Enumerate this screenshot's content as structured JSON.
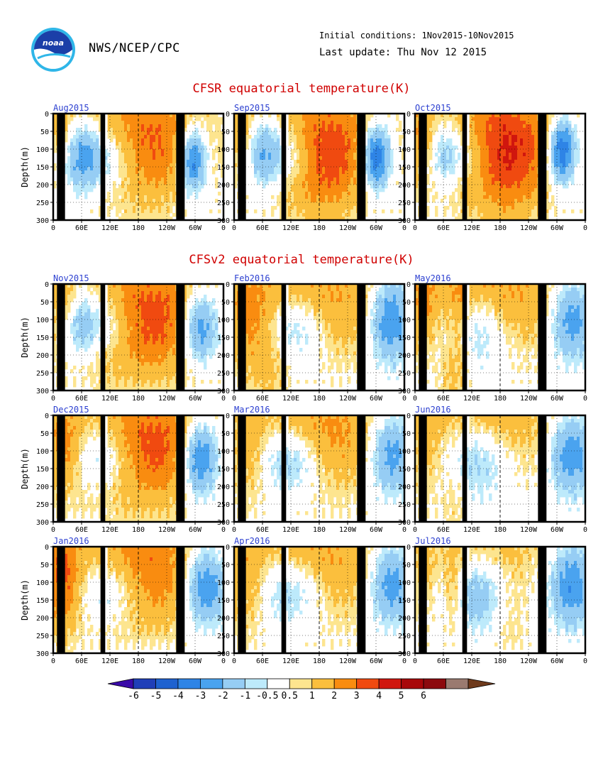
{
  "header": {
    "org": "NWS/NCEP/CPC",
    "logo_text": "noaa",
    "initial_conditions": "Initial conditions: 1Nov2015-10Nov2015",
    "last_update": "Last update: Thu Nov 12 2015"
  },
  "sections": {
    "cfsr_title": "CFSR equatorial temperature(K)",
    "cfsv2_title": "CFSv2 equatorial temperature(K)"
  },
  "colors": {
    "title_red": "#d00000",
    "panel_title_blue": "#2b3fd0",
    "land": "#000000",
    "scale": [
      "#3a0aa8",
      "#1f3fb8",
      "#1e62d0",
      "#2e84e6",
      "#4aa3ef",
      "#96cdf4",
      "#bdeafb",
      "#ffffff",
      "#fde58f",
      "#fbbf3d",
      "#f98c10",
      "#f04a10",
      "#d0160e",
      "#a8080a",
      "#8c0a0e",
      "#9a7a70",
      "#6e3a1c"
    ]
  },
  "chart_data": {
    "type": "heatmap",
    "variable": "equatorial temperature anomaly (K)",
    "ylabel": "Depth(m)",
    "y_ticks": [
      "0",
      "50",
      "100",
      "150",
      "200",
      "250",
      "300"
    ],
    "x_ticks": [
      "0",
      "60E",
      "120E",
      "180",
      "120W",
      "60W",
      "0"
    ],
    "ylim": [
      0,
      300
    ],
    "xlim": [
      0,
      360
    ],
    "colorbar_labels": [
      "-6",
      "-5",
      "-4",
      "-3",
      "-2",
      "-1",
      "-0.5",
      "0.5",
      "1",
      "2",
      "3",
      "4",
      "5",
      "6"
    ],
    "panels": [
      {
        "title": "Aug2015",
        "group": "CFSR",
        "warm": [
          180,
          85,
          140,
          300,
          3.5
        ],
        "cold": [
          [
            110,
            120,
            70,
            220,
            -3.0
          ],
          [
            295,
            130,
            30,
            200,
            -4.5
          ],
          [
            55,
            120,
            40,
            220,
            -2.5
          ]
        ],
        "warm2": [
          [
            20,
            60,
            30,
            220,
            1.2
          ]
        ]
      },
      {
        "title": "Sep2015",
        "group": "CFSR",
        "warm": [
          175,
          90,
          135,
          300,
          3.5
        ],
        "cold": [
          [
            110,
            110,
            70,
            220,
            -3.0
          ],
          [
            300,
            120,
            30,
            200,
            -5.0
          ],
          [
            60,
            110,
            35,
            220,
            -2.0
          ]
        ],
        "warm2": [
          [
            15,
            50,
            30,
            220,
            1.3
          ],
          [
            190,
            170,
            70,
            280,
            1.0
          ]
        ]
      },
      {
        "title": "Oct2015",
        "group": "CFSR",
        "warm": [
          165,
          85,
          140,
          300,
          4.0
        ],
        "cold": [
          [
            110,
            110,
            60,
            220,
            -2.8
          ],
          [
            310,
            105,
            30,
            200,
            -5.0
          ],
          [
            60,
            110,
            35,
            220,
            -2.0
          ]
        ],
        "warm2": [
          [
            10,
            60,
            30,
            220,
            1.3
          ],
          [
            195,
            180,
            70,
            290,
            1.0
          ]
        ]
      },
      {
        "title": "Nov2015",
        "group": "CFSv2",
        "warm": [
          180,
          95,
          145,
          300,
          4.0
        ],
        "cold": [
          [
            110,
            110,
            70,
            220,
            -3.0
          ],
          [
            310,
            120,
            40,
            220,
            -4.0
          ],
          [
            50,
            110,
            40,
            220,
            -2.0
          ]
        ],
        "warm2": [
          [
            20,
            70,
            30,
            220,
            1.5
          ]
        ]
      },
      {
        "title": "Feb2016",
        "group": "CFSv2",
        "warm": [
          145,
          55,
          170,
          300,
          2.8
        ],
        "cold": [
          [
            125,
            115,
            75,
            240,
            -3.0
          ],
          [
            330,
            100,
            45,
            260,
            -3.5
          ]
        ],
        "warm2": [
          [
            30,
            110,
            45,
            260,
            1.2
          ],
          [
            75,
            230,
            40,
            260,
            1.0
          ]
        ]
      },
      {
        "title": "May2016",
        "group": "CFSv2",
        "warm": [
          145,
          45,
          150,
          300,
          3.0
        ],
        "cold": [
          [
            125,
            115,
            80,
            260,
            -3.0
          ],
          [
            330,
            100,
            45,
            240,
            -3.0
          ]
        ],
        "warm2": [
          [
            15,
            70,
            30,
            240,
            1.3
          ],
          [
            80,
            270,
            30,
            260,
            1.0
          ],
          [
            95,
            100,
            25,
            250,
            1.2
          ]
        ]
      },
      {
        "title": "Dec2015",
        "group": "CFSv2",
        "warm": [
          185,
          90,
          150,
          300,
          3.8
        ],
        "cold": [
          [
            110,
            115,
            70,
            220,
            -3.0
          ],
          [
            310,
            120,
            40,
            240,
            -4.5
          ]
        ],
        "warm2": [
          [
            20,
            80,
            35,
            240,
            1.8
          ]
        ]
      },
      {
        "title": "Mar2016",
        "group": "CFSv2",
        "warm": [
          170,
          60,
          140,
          300,
          2.8
        ],
        "cold": [
          [
            120,
            120,
            75,
            230,
            -3.0
          ],
          [
            330,
            110,
            45,
            240,
            -3.0
          ]
        ],
        "warm2": [
          [
            30,
            110,
            40,
            260,
            1.2
          ]
        ]
      },
      {
        "title": "Jun2016",
        "group": "CFSv2",
        "warm": [
          145,
          40,
          140,
          300,
          2.5
        ],
        "cold": [
          [
            120,
            115,
            90,
            260,
            -3.0
          ],
          [
            330,
            110,
            45,
            240,
            -3.0
          ]
        ],
        "warm2": [
          [
            25,
            110,
            40,
            260,
            1.3
          ],
          [
            85,
            200,
            30,
            260,
            1.0
          ]
        ]
      },
      {
        "title": "Jan2016",
        "group": "CFSv2",
        "warm": [
          165,
          70,
          150,
          300,
          3.5
        ],
        "cold": [
          [
            115,
            115,
            75,
            230,
            -3.0
          ],
          [
            320,
            110,
            45,
            240,
            -3.8
          ]
        ],
        "warm2": [
          [
            20,
            100,
            35,
            260,
            2.5
          ]
        ]
      },
      {
        "title": "Apr2016",
        "group": "CFSv2",
        "warm": [
          155,
          55,
          140,
          300,
          2.8
        ],
        "cold": [
          [
            120,
            115,
            80,
            240,
            -3.0
          ],
          [
            330,
            105,
            45,
            240,
            -3.0
          ]
        ],
        "warm2": [
          [
            25,
            110,
            40,
            260,
            1.3
          ]
        ]
      },
      {
        "title": "Jul2016",
        "group": "CFSv2",
        "warm": [
          150,
          40,
          130,
          300,
          2.0
        ],
        "cold": [
          [
            130,
            120,
            95,
            260,
            -3.0
          ],
          [
            330,
            110,
            45,
            240,
            -3.0
          ]
        ],
        "warm2": [
          [
            20,
            100,
            30,
            260,
            1.3
          ],
          [
            80,
            130,
            25,
            220,
            2.0
          ],
          [
            200,
            180,
            40,
            260,
            1.0
          ]
        ]
      }
    ],
    "land_bands_lon": [
      [
        8,
        25
      ],
      [
        100,
        110
      ],
      [
        260,
        278
      ]
    ],
    "maritime_notch_lon": [
      110,
      115
    ],
    "dashed_meridians_lon": [
      180
    ]
  }
}
